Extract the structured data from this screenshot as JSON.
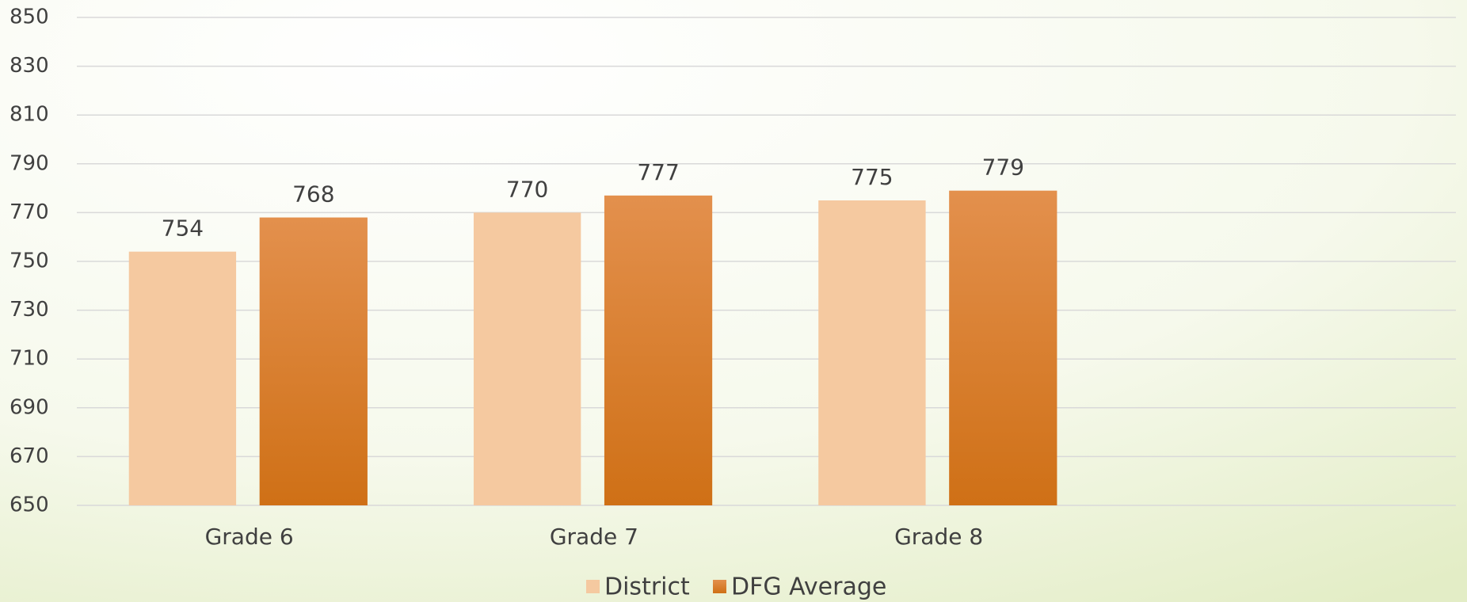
{
  "chart_data": {
    "type": "bar",
    "categories": [
      "Grade 6",
      "Grade 7",
      "Grade 8",
      null
    ],
    "series": [
      {
        "name": "District",
        "color": "#f5c9a0",
        "values": [
          754,
          770,
          775,
          null
        ]
      },
      {
        "name": "DFG Average",
        "color": "#d97a2a",
        "values": [
          768,
          777,
          779,
          null
        ]
      }
    ],
    "ylim": [
      650,
      850
    ],
    "yticks": [
      650,
      670,
      690,
      710,
      730,
      750,
      770,
      790,
      810,
      830,
      850
    ],
    "grid": true,
    "legend": "bottom"
  }
}
